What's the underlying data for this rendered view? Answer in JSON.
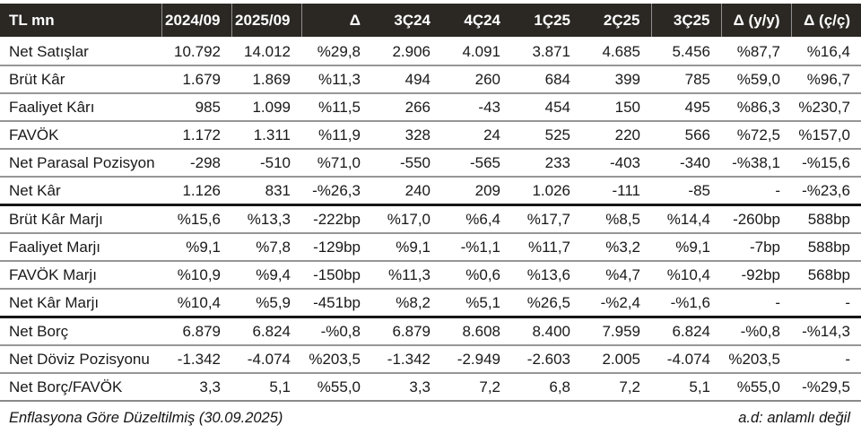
{
  "table": {
    "unit_label": "TL mn",
    "columns": [
      "TL mn",
      "2024/09",
      "2025/09",
      "Δ",
      "3Ç24",
      "4Ç24",
      "1Ç25",
      "2Ç25",
      "3Ç25",
      "Δ (y/y)",
      "Δ (ç/ç)"
    ],
    "sections": [
      {
        "name": "income-statement",
        "rows": [
          {
            "label": "Net Satışlar",
            "values": [
              "10.792",
              "14.012",
              "%29,8",
              "2.906",
              "4.091",
              "3.871",
              "4.685",
              "5.456",
              "%87,7",
              "%16,4"
            ]
          },
          {
            "label": "Brüt Kâr",
            "values": [
              "1.679",
              "1.869",
              "%11,3",
              "494",
              "260",
              "684",
              "399",
              "785",
              "%59,0",
              "%96,7"
            ]
          },
          {
            "label": "Faaliyet Kârı",
            "values": [
              "985",
              "1.099",
              "%11,5",
              "266",
              "-43",
              "454",
              "150",
              "495",
              "%86,3",
              "%230,7"
            ]
          },
          {
            "label": "FAVÖK",
            "values": [
              "1.172",
              "1.311",
              "%11,9",
              "328",
              "24",
              "525",
              "220",
              "566",
              "%72,5",
              "%157,0"
            ]
          },
          {
            "label": "Net Parasal Pozisyon",
            "values": [
              "-298",
              "-510",
              "%71,0",
              "-550",
              "-565",
              "233",
              "-403",
              "-340",
              "-%38,1",
              "-%15,6"
            ]
          },
          {
            "label": "Net Kâr",
            "values": [
              "1.126",
              "831",
              "-%26,3",
              "240",
              "209",
              "1.026",
              "-111",
              "-85",
              "-",
              "-%23,6"
            ]
          }
        ]
      },
      {
        "name": "margins",
        "rows": [
          {
            "label": "Brüt Kâr Marjı",
            "values": [
              "%15,6",
              "%13,3",
              "-222bp",
              "%17,0",
              "%6,4",
              "%17,7",
              "%8,5",
              "%14,4",
              "-260bp",
              "588bp"
            ]
          },
          {
            "label": "Faaliyet Marjı",
            "values": [
              "%9,1",
              "%7,8",
              "-129bp",
              "%9,1",
              "-%1,1",
              "%11,7",
              "%3,2",
              "%9,1",
              "-7bp",
              "588bp"
            ]
          },
          {
            "label": "FAVÖK Marjı",
            "values": [
              "%10,9",
              "%9,4",
              "-150bp",
              "%11,3",
              "%0,6",
              "%13,6",
              "%4,7",
              "%10,4",
              "-92bp",
              "568bp"
            ]
          },
          {
            "label": "Net Kâr Marjı",
            "values": [
              "%10,4",
              "%5,9",
              "-451bp",
              "%8,2",
              "%5,1",
              "%26,5",
              "-%2,4",
              "-%1,6",
              "-",
              "-"
            ]
          }
        ]
      },
      {
        "name": "debt",
        "rows": [
          {
            "label": "Net Borç",
            "values": [
              "6.879",
              "6.824",
              "-%0,8",
              "6.879",
              "8.608",
              "8.400",
              "7.959",
              "6.824",
              "-%0,8",
              "-%14,3"
            ]
          },
          {
            "label": "Net Döviz Pozisyonu",
            "values": [
              "-1.342",
              "-4.074",
              "%203,5",
              "-1.342",
              "-2.949",
              "-2.603",
              "2.005",
              "-4.074",
              "%203,5",
              "-"
            ]
          },
          {
            "label": "Net Borç/FAVÖK",
            "values": [
              "3,3",
              "5,1",
              "%55,0",
              "3,3",
              "7,2",
              "6,8",
              "7,2",
              "5,1",
              "%55,0",
              "-%29,5"
            ]
          }
        ]
      }
    ]
  },
  "footer": {
    "left_note": "Enflasyona Göre Düzeltilmiş (30.09.2025)",
    "right_note": "a.d: anlamlı değil"
  },
  "colors": {
    "header_bg": "#2b2824",
    "header_text": "#ffffff",
    "row_separator": "#969696",
    "section_separator": "#151515",
    "table_bottom_border": "#8a8a8a",
    "header_cell_separator": "#8f8f8f",
    "body_text": "#191919"
  }
}
